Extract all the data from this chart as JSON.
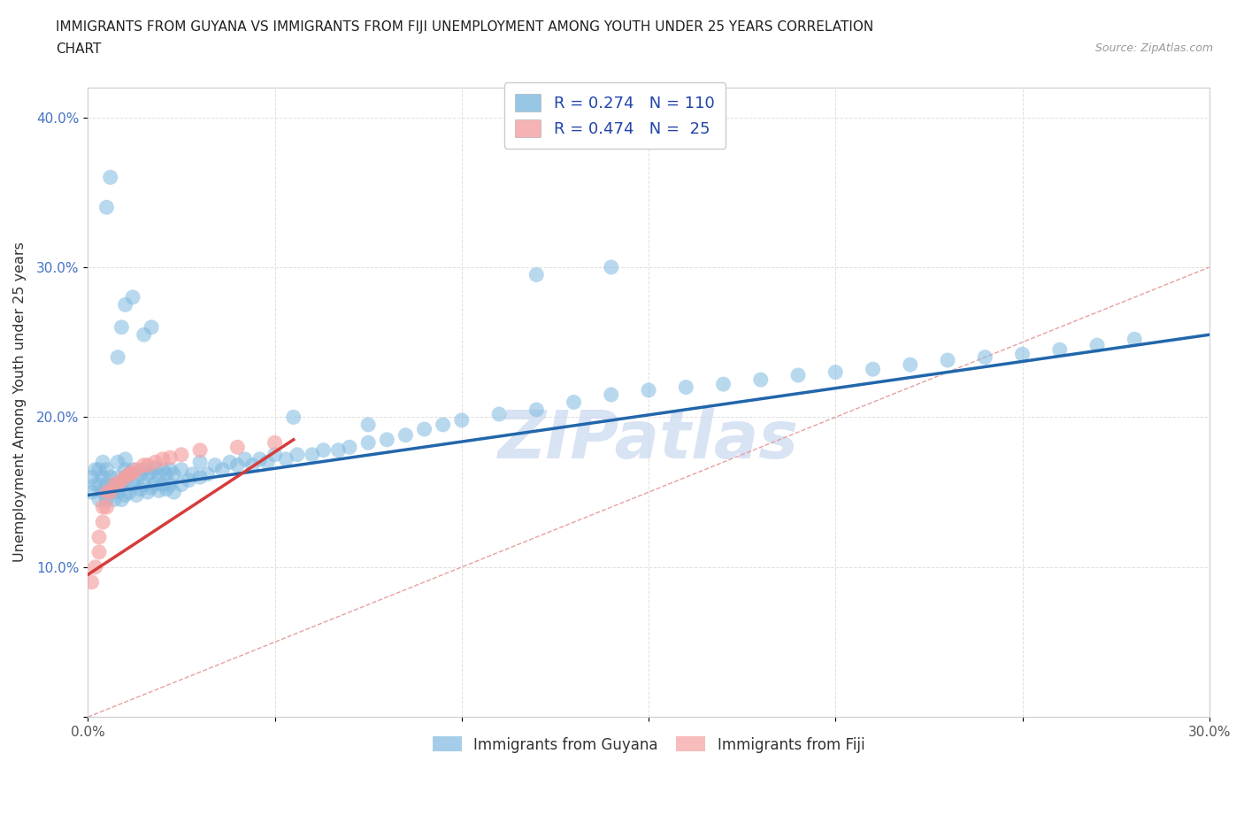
{
  "title_line1": "IMMIGRANTS FROM GUYANA VS IMMIGRANTS FROM FIJI UNEMPLOYMENT AMONG YOUTH UNDER 25 YEARS CORRELATION",
  "title_line2": "CHART",
  "source_text": "Source: ZipAtlas.com",
  "ylabel": "Unemployment Among Youth under 25 years",
  "xlim": [
    0.0,
    0.3
  ],
  "ylim": [
    0.0,
    0.42
  ],
  "x_ticks": [
    0.0,
    0.05,
    0.1,
    0.15,
    0.2,
    0.25,
    0.3
  ],
  "y_ticks": [
    0.0,
    0.1,
    0.2,
    0.3,
    0.4
  ],
  "guyana_color": "#7fb9e0",
  "fiji_color": "#f4a0a0",
  "trend_guyana_color": "#2166ac",
  "trend_fiji_color": "#d63c3c",
  "diagonal_color": "#e8a0a0",
  "grid_color": "#e0e0e0",
  "watermark_text": "ZIPatlas",
  "watermark_color": "#c8d8ee",
  "R_guyana": 0.274,
  "N_guyana": 110,
  "R_fiji": 0.474,
  "N_fiji": 25,
  "legend_label_guyana": "Immigrants from Guyana",
  "legend_label_fiji": "Immigrants from Fiji",
  "guyana_x": [
    0.001,
    0.001,
    0.002,
    0.002,
    0.003,
    0.003,
    0.003,
    0.004,
    0.004,
    0.004,
    0.005,
    0.005,
    0.005,
    0.006,
    0.006,
    0.007,
    0.007,
    0.008,
    0.008,
    0.008,
    0.009,
    0.009,
    0.01,
    0.01,
    0.01,
    0.01,
    0.011,
    0.011,
    0.012,
    0.012,
    0.013,
    0.013,
    0.014,
    0.014,
    0.015,
    0.015,
    0.016,
    0.016,
    0.017,
    0.017,
    0.018,
    0.018,
    0.019,
    0.019,
    0.02,
    0.02,
    0.021,
    0.021,
    0.022,
    0.022,
    0.023,
    0.023,
    0.025,
    0.025,
    0.027,
    0.028,
    0.03,
    0.03,
    0.032,
    0.034,
    0.036,
    0.038,
    0.04,
    0.042,
    0.044,
    0.046,
    0.048,
    0.05,
    0.053,
    0.056,
    0.06,
    0.063,
    0.067,
    0.07,
    0.075,
    0.08,
    0.085,
    0.09,
    0.095,
    0.1,
    0.11,
    0.12,
    0.13,
    0.14,
    0.15,
    0.16,
    0.17,
    0.18,
    0.19,
    0.2,
    0.21,
    0.22,
    0.23,
    0.24,
    0.25,
    0.26,
    0.27,
    0.28,
    0.12,
    0.14,
    0.008,
    0.009,
    0.005,
    0.006,
    0.01,
    0.012,
    0.015,
    0.017,
    0.055,
    0.075
  ],
  "guyana_y": [
    0.15,
    0.16,
    0.155,
    0.165,
    0.145,
    0.155,
    0.165,
    0.15,
    0.16,
    0.17,
    0.145,
    0.155,
    0.165,
    0.15,
    0.16,
    0.145,
    0.155,
    0.15,
    0.16,
    0.17,
    0.145,
    0.155,
    0.148,
    0.158,
    0.165,
    0.172,
    0.15,
    0.162,
    0.155,
    0.165,
    0.148,
    0.158,
    0.152,
    0.162,
    0.155,
    0.165,
    0.15,
    0.162,
    0.153,
    0.163,
    0.156,
    0.166,
    0.151,
    0.161,
    0.155,
    0.165,
    0.152,
    0.162,
    0.155,
    0.165,
    0.15,
    0.162,
    0.155,
    0.165,
    0.158,
    0.162,
    0.16,
    0.17,
    0.162,
    0.168,
    0.165,
    0.17,
    0.168,
    0.172,
    0.168,
    0.172,
    0.17,
    0.175,
    0.172,
    0.175,
    0.175,
    0.178,
    0.178,
    0.18,
    0.183,
    0.185,
    0.188,
    0.192,
    0.195,
    0.198,
    0.202,
    0.205,
    0.21,
    0.215,
    0.218,
    0.22,
    0.222,
    0.225,
    0.228,
    0.23,
    0.232,
    0.235,
    0.238,
    0.24,
    0.242,
    0.245,
    0.248,
    0.252,
    0.295,
    0.3,
    0.24,
    0.26,
    0.34,
    0.36,
    0.275,
    0.28,
    0.255,
    0.26,
    0.2,
    0.195
  ],
  "fiji_x": [
    0.001,
    0.002,
    0.003,
    0.003,
    0.004,
    0.004,
    0.005,
    0.005,
    0.006,
    0.007,
    0.008,
    0.009,
    0.01,
    0.011,
    0.012,
    0.013,
    0.015,
    0.016,
    0.018,
    0.02,
    0.022,
    0.025,
    0.03,
    0.04,
    0.05
  ],
  "fiji_y": [
    0.09,
    0.1,
    0.11,
    0.12,
    0.13,
    0.14,
    0.14,
    0.15,
    0.15,
    0.155,
    0.155,
    0.158,
    0.16,
    0.162,
    0.163,
    0.165,
    0.168,
    0.168,
    0.17,
    0.172,
    0.173,
    0.175,
    0.178,
    0.18,
    0.183
  ],
  "trend_guyana_x0": 0.0,
  "trend_guyana_y0": 0.148,
  "trend_guyana_x1": 0.3,
  "trend_guyana_y1": 0.255,
  "trend_fiji_x0": 0.0,
  "trend_fiji_y0": 0.095,
  "trend_fiji_x1": 0.055,
  "trend_fiji_y1": 0.185
}
